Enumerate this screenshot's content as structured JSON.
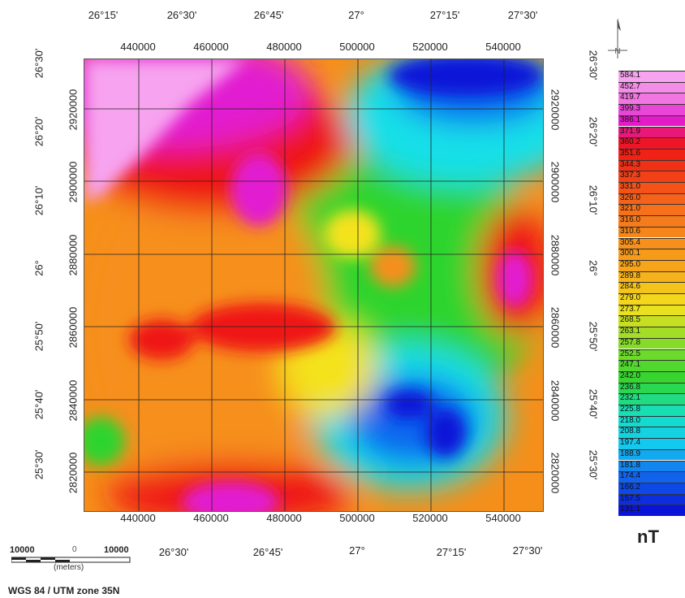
{
  "map": {
    "colors": {
      "pink": "#f7a3ef",
      "magenta": "#e21bd0",
      "red": "#ef1414",
      "orange": "#f68f1a",
      "yellow": "#f4e21b",
      "green": "#2fd42f",
      "cyan": "#14e0e8",
      "blue": "#1166ef",
      "deep_blue": "#0a14d8"
    },
    "top_longitudes": [
      "26°15'",
      "26°30'",
      "26°45'",
      "27°",
      "27°15'",
      "27°30'"
    ],
    "top_eastings": [
      "440000",
      "460000",
      "480000",
      "500000",
      "520000",
      "540000"
    ],
    "bottom_eastings": [
      "440000",
      "460000",
      "480000",
      "500000",
      "520000",
      "540000"
    ],
    "bottom_longitudes": [
      "26°30'",
      "26°45'",
      "27°",
      "27°15'",
      "27°30'"
    ],
    "left_latitudes": [
      "26°30'",
      "26°20'",
      "26°10'",
      "26°",
      "25°50'",
      "25°40'",
      "25°30'"
    ],
    "left_northings": [
      "2920000",
      "2900000",
      "2880000",
      "2860000",
      "2840000",
      "2820000"
    ],
    "right_northings": [
      "2920000",
      "2900000",
      "2880000",
      "2860000",
      "2840000",
      "2820000"
    ],
    "right_latitudes": [
      "26°30'",
      "26°20'",
      "26°10'",
      "26°",
      "25°50'",
      "25°40'",
      "25°30'"
    ]
  },
  "legend": {
    "unit": "nT",
    "values": [
      "584.1",
      "452.7",
      "419.7",
      "399.3",
      "386.1",
      "371.9",
      "360.2",
      "351.6",
      "344.3",
      "337.3",
      "331.0",
      "326.0",
      "321.0",
      "316.0",
      "310.6",
      "305.4",
      "300.1",
      "295.0",
      "289.8",
      "284.6",
      "279.0",
      "273.7",
      "268.5",
      "263.1",
      "257.8",
      "252.5",
      "247.1",
      "242.0",
      "236.8",
      "232.1",
      "225.8",
      "218.0",
      "208.8",
      "197.4",
      "188.9",
      "181.8",
      "174.4",
      "166.2",
      "157.5",
      "131.1"
    ]
  },
  "scale_bar": {
    "left_label": "10000",
    "zero_label": "0",
    "right_label": "10000",
    "unit_label": "(meters)"
  },
  "crs_label": "WGS 84 / UTM zone 35N"
}
